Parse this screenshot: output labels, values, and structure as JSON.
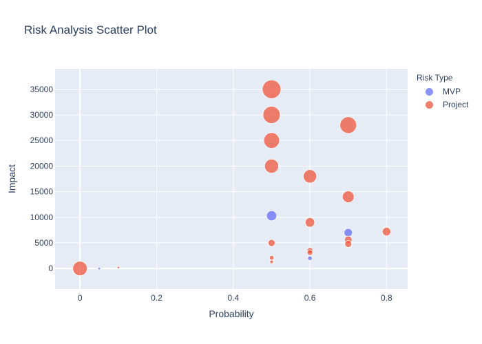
{
  "chart_data": {
    "type": "scatter",
    "title": "Risk Analysis Scatter Plot",
    "xlabel": "Probability",
    "ylabel": "Impact",
    "xlim": [
      -0.065,
      0.855
    ],
    "ylim": [
      -4000,
      39000
    ],
    "x_ticks": [
      0,
      0.2,
      0.4,
      0.6,
      0.8
    ],
    "x_tick_labels": [
      "0",
      "0.2",
      "0.4",
      "0.6",
      "0.8"
    ],
    "y_ticks": [
      0,
      5000,
      10000,
      15000,
      20000,
      25000,
      30000,
      35000
    ],
    "y_tick_labels": [
      "0",
      "5000",
      "10000",
      "15000",
      "20000",
      "25000",
      "30000",
      "35000"
    ],
    "grid": true,
    "legend_title": "Risk Type",
    "legend_position": "top-right",
    "size_encodes": "Impact",
    "series": [
      {
        "name": "MVP",
        "color": "#636efa",
        "points": [
          {
            "x": 0.05,
            "y": 0
          },
          {
            "x": 0.5,
            "y": 10300
          },
          {
            "x": 0.6,
            "y": 2000
          },
          {
            "x": 0.7,
            "y": 7000
          }
        ]
      },
      {
        "name": "Project",
        "color": "#ef553b",
        "points": [
          {
            "x": 0.0,
            "y": 0
          },
          {
            "x": 0.1,
            "y": 200
          },
          {
            "x": 0.5,
            "y": 35000
          },
          {
            "x": 0.5,
            "y": 30000
          },
          {
            "x": 0.5,
            "y": 25000
          },
          {
            "x": 0.5,
            "y": 20000
          },
          {
            "x": 0.5,
            "y": 5000
          },
          {
            "x": 0.5,
            "y": 2100
          },
          {
            "x": 0.5,
            "y": 1300
          },
          {
            "x": 0.6,
            "y": 18000
          },
          {
            "x": 0.6,
            "y": 9000
          },
          {
            "x": 0.6,
            "y": 3500
          },
          {
            "x": 0.6,
            "y": 3100
          },
          {
            "x": 0.7,
            "y": 28000
          },
          {
            "x": 0.7,
            "y": 14000
          },
          {
            "x": 0.7,
            "y": 5600
          },
          {
            "x": 0.7,
            "y": 4800
          },
          {
            "x": 0.8,
            "y": 7200
          }
        ]
      }
    ]
  }
}
